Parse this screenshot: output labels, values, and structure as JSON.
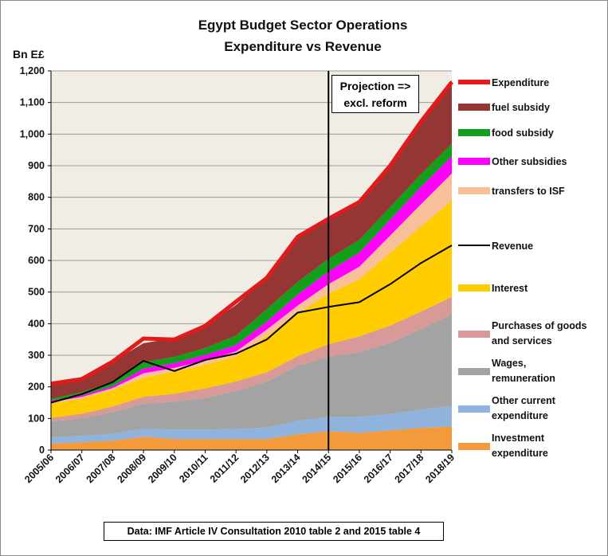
{
  "title_line1": "Egypt Budget Sector Operations",
  "title_line2": "Expenditure vs Revenue",
  "unit_label": "Bn E£",
  "projection_line1": "Projection =>",
  "projection_line2": "excl. reform",
  "source_note": "Data: IMF Article IV Consultation 2010 table 2 and 2015 table 4",
  "chart_data": {
    "type": "area",
    "stacked": true,
    "categories": [
      "2005/06",
      "2006/07",
      "2007/08",
      "2008/09",
      "2009/10",
      "2010/11",
      "2011/12",
      "2012/13",
      "2013/14",
      "2014/15",
      "2015/16",
      "2016/17",
      "2017/18",
      "2018/19"
    ],
    "ylim": [
      0,
      1200
    ],
    "yticks": [
      "0",
      "100",
      "200",
      "300",
      "400",
      "500",
      "600",
      "700",
      "800",
      "900",
      "1,000",
      "1,100",
      "1,200"
    ],
    "grid": true,
    "legend_position": "right",
    "projection_start": "2014/15",
    "series": [
      {
        "name": "Investment expenditure",
        "color": "#f39a3c",
        "values": [
          20,
          25,
          30,
          42,
          35,
          35,
          35,
          35,
          50,
          60,
          55,
          62,
          70,
          75
        ]
      },
      {
        "name": "Other current expenditure",
        "color": "#8fb3dd",
        "values": [
          20,
          20,
          22,
          25,
          30,
          30,
          32,
          36,
          42,
          45,
          50,
          52,
          58,
          65
        ]
      },
      {
        "name": "Wages, remuneration",
        "color": "#a3a3a3",
        "values": [
          50,
          55,
          68,
          80,
          88,
          100,
          120,
          145,
          175,
          190,
          205,
          225,
          255,
          290
        ]
      },
      {
        "name": "Purchases of goods and services",
        "color": "#d89a98",
        "values": [
          12,
          15,
          18,
          22,
          25,
          30,
          30,
          30,
          30,
          40,
          50,
          55,
          55,
          55
        ]
      },
      {
        "name": "Interest",
        "color": "#ffcc00",
        "values": [
          45,
          48,
          52,
          60,
          70,
          75,
          80,
          115,
          135,
          160,
          180,
          230,
          270,
          305
        ]
      },
      {
        "name": "transfers to ISF",
        "color": "#f7bf9a",
        "values": [
          5,
          5,
          6,
          14,
          12,
          13,
          15,
          20,
          25,
          30,
          40,
          55,
          70,
          85
        ]
      },
      {
        "name": "Other subsidies",
        "color": "#ff00ff",
        "values": [
          5,
          5,
          6,
          15,
          15,
          18,
          20,
          25,
          35,
          40,
          45,
          50,
          55,
          55
        ]
      },
      {
        "name": "food subsidy",
        "color": "#119f1c",
        "values": [
          5,
          10,
          15,
          20,
          20,
          22,
          30,
          40,
          40,
          40,
          40,
          40,
          40,
          40
        ]
      },
      {
        "name": "fuel subsidy",
        "color": "#943634",
        "values": [
          48,
          42,
          63,
          60,
          60,
          70,
          97,
          99,
          143,
          127,
          120,
          131,
          167,
          200
        ]
      }
    ],
    "lines": [
      {
        "name": "Expenditure",
        "color": "#e31a1c",
        "values": [
          210,
          225,
          280,
          353,
          350,
          393,
          470,
          545,
          675,
          732,
          785,
          900,
          1040,
          1165
        ]
      },
      {
        "name": "Revenue",
        "color": "#000000",
        "values": [
          150,
          177,
          215,
          282,
          250,
          285,
          305,
          350,
          435,
          453,
          468,
          525,
          592,
          648
        ]
      }
    ]
  },
  "legend": [
    {
      "label": "Expenditure",
      "color": "#e31a1c",
      "kind": "thick"
    },
    {
      "label": "fuel subsidy",
      "color": "#943634",
      "kind": "swatch"
    },
    {
      "label": "food subsidy",
      "color": "#119f1c",
      "kind": "swatch"
    },
    {
      "label": "Other subsidies",
      "color": "#ff00ff",
      "kind": "swatch"
    },
    {
      "label": "transfers to ISF",
      "color": "#f7bf9a",
      "kind": "swatch"
    },
    {
      "label": "Revenue",
      "color": "#000000",
      "kind": "line"
    },
    {
      "label": "Interest",
      "color": "#ffcc00",
      "kind": "swatch"
    },
    {
      "label": "Purchases of goods and services",
      "line1": "Purchases of goods",
      "line2": "and services",
      "color": "#d89a98",
      "kind": "swatch"
    },
    {
      "label": "Wages, remuneration",
      "line1": "Wages,",
      "line2": "remuneration",
      "color": "#a3a3a3",
      "kind": "swatch"
    },
    {
      "label": "Other current expenditure",
      "line1": "Other current",
      "line2": "expenditure",
      "color": "#8fb3dd",
      "kind": "swatch"
    },
    {
      "label": "Investment expenditure",
      "line1": "Investment",
      "line2": "expenditure",
      "color": "#f39a3c",
      "kind": "swatch"
    }
  ]
}
